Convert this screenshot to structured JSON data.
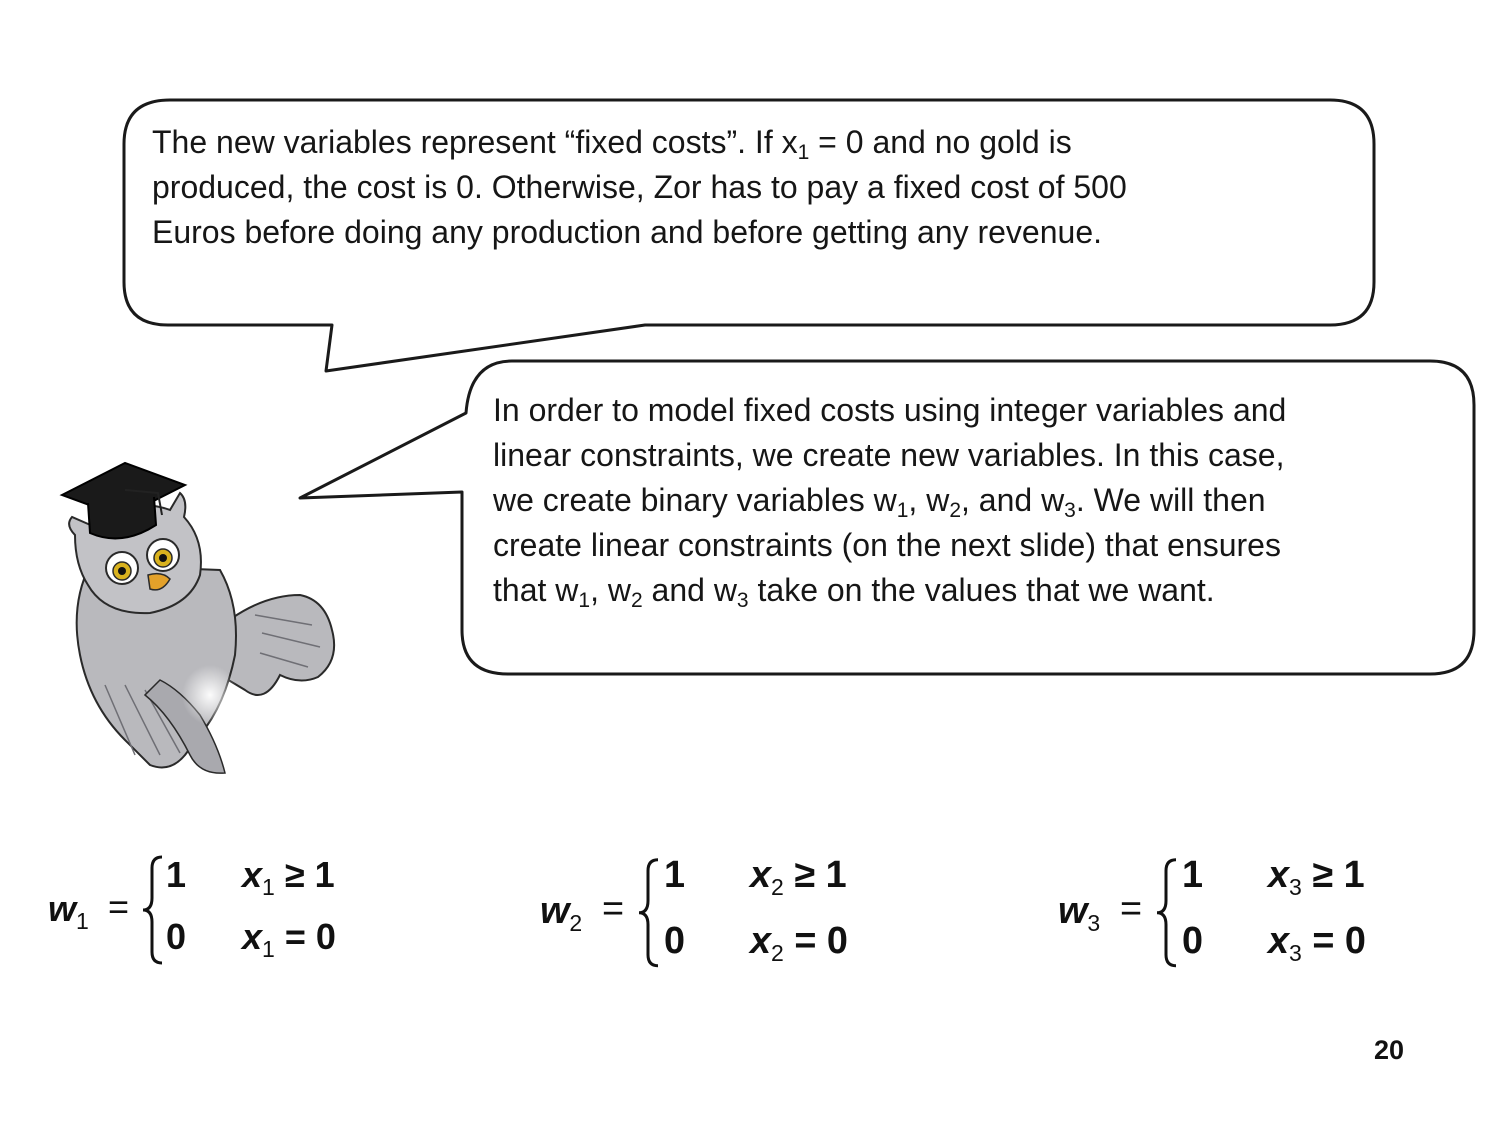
{
  "bubble_top": {
    "lines": [
      [
        {
          "t": "The new variables represent “fixed costs”.  If x"
        },
        {
          "sub": "1"
        },
        {
          "t": " = 0 and no gold is"
        }
      ],
      [
        {
          "t": "produced, the cost is 0.  Otherwise, Zor has to pay a fixed cost of 500"
        }
      ],
      [
        {
          "t": "Euros before doing any production and before getting any revenue."
        }
      ]
    ]
  },
  "bubble_bottom": {
    "lines": [
      [
        {
          "t": "In order to model fixed costs using integer variables and"
        }
      ],
      [
        {
          "t": "linear constraints, we create new variables.  In this case,"
        }
      ],
      [
        {
          "t": "we create binary variables w"
        },
        {
          "sub": "1"
        },
        {
          "t": ", w"
        },
        {
          "sub": "2"
        },
        {
          "t": ", and w"
        },
        {
          "sub": "3"
        },
        {
          "t": ".   We will then"
        }
      ],
      [
        {
          "t": "create linear constraints (on the next slide) that ensures"
        }
      ],
      [
        {
          "t": "that w"
        },
        {
          "sub": "1"
        },
        {
          "t": ", w"
        },
        {
          "sub": "2"
        },
        {
          "t": " and w"
        },
        {
          "sub": "3"
        },
        {
          "t": " take on the values that we want."
        }
      ]
    ]
  },
  "formulas": [
    {
      "var": "w",
      "index": "1",
      "eq": "=",
      "case_one_value": "1",
      "case_one_cond_var": "x",
      "case_one_cond_rel": "≥ 1",
      "case_zero_value": "0",
      "case_zero_cond_var": "x",
      "case_zero_cond_rel": "= 0"
    },
    {
      "var": "w",
      "index": "2",
      "eq": "=",
      "case_one_value": "1",
      "case_one_cond_var": "x",
      "case_one_cond_rel": "≥ 1",
      "case_zero_value": "0",
      "case_zero_cond_var": "x",
      "case_zero_cond_rel": "= 0"
    },
    {
      "var": "w",
      "index": "3",
      "eq": "=",
      "case_one_value": "1",
      "case_one_cond_var": "x",
      "case_one_cond_rel": "≥ 1",
      "case_zero_value": "0",
      "case_zero_cond_var": "x",
      "case_zero_cond_rel": "= 0"
    }
  ],
  "page_number": "20",
  "colors": {
    "owl_body": "#b9b9bd",
    "owl_dark": "#8e8e94",
    "cap": "#1a1a1a",
    "eye": "#d9b21e",
    "beak": "#e3a12a"
  }
}
